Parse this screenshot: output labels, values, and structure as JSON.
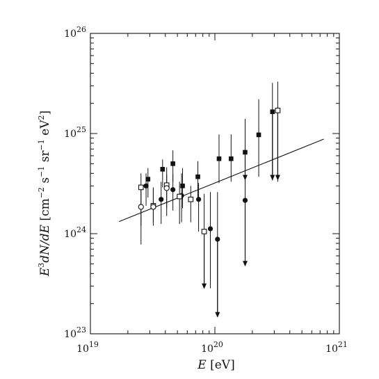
{
  "chart_data": {
    "type": "scatter",
    "title": "",
    "x_scale": "log",
    "y_scale": "log",
    "xlim": [
      1e+19,
      1e+21
    ],
    "ylim": [
      1e+23,
      1e+26
    ],
    "grid": false,
    "legend": "none",
    "x_ticks": [
      {
        "value": 1e+19,
        "base": "10",
        "exp": "19"
      },
      {
        "value": 1e+20,
        "base": "10",
        "exp": "20"
      },
      {
        "value": 1e+21,
        "base": "10",
        "exp": "21"
      }
    ],
    "y_ticks": [
      {
        "value": 1e+23,
        "base": "10",
        "exp": "23"
      },
      {
        "value": 1e+24,
        "base": "10",
        "exp": "24"
      },
      {
        "value": 1e+25,
        "base": "10",
        "exp": "25"
      },
      {
        "value": 1e+26,
        "base": "10",
        "exp": "26"
      }
    ],
    "xlabel": {
      "var": "E",
      "unit": "[eV]"
    },
    "ylabel": {
      "parts": [
        {
          "t": "E",
          "s": "italic"
        },
        {
          "t": "3",
          "s": "sup"
        },
        {
          "t": "dN/dE",
          "s": "italic"
        },
        {
          "t": " [cm",
          "s": "roman"
        },
        {
          "t": "−2",
          "s": "sup"
        },
        {
          "t": " s",
          "s": "roman"
        },
        {
          "t": "−1",
          "s": "sup"
        },
        {
          "t": " sr",
          "s": "roman"
        },
        {
          "t": "−1",
          "s": "sup"
        },
        {
          "t": " eV",
          "s": "roman"
        },
        {
          "t": "2",
          "s": "sup"
        },
        {
          "t": "]",
          "s": "roman"
        }
      ]
    },
    "fit_line": {
      "x": [
        1.7e+19,
        7.5e+20
      ],
      "y": [
        1.32e+24,
        8.8e+24
      ]
    },
    "series": [
      {
        "marker": "filled-square",
        "points": [
          {
            "x": 2.9e+19,
            "y": 3.5e+24,
            "lo": 2.3e+24,
            "hi": 4.5e+24
          },
          {
            "x": 3.8e+19,
            "y": 4.4e+24,
            "lo": 2.9e+24,
            "hi": 5.5e+24
          },
          {
            "x": 4.6e+19,
            "y": 5e+24,
            "lo": 3.3e+24,
            "hi": 6.8e+24
          },
          {
            "x": 5.5e+19,
            "y": 3e+24,
            "lo": 1.8e+24,
            "hi": 4.5e+24
          },
          {
            "x": 7.3e+19,
            "y": 3.7e+24,
            "lo": 2.3e+24,
            "hi": 5.3e+24
          },
          {
            "x": 1.08e+20,
            "y": 5.6e+24,
            "lo": 3.2e+24,
            "hi": 9.8e+24
          },
          {
            "x": 1.35e+20,
            "y": 5.6e+24,
            "lo": 3.3e+24,
            "hi": 9.8e+24
          },
          {
            "x": 1.75e+20,
            "y": 6.5e+24,
            "lo": 3.3e+24,
            "hi": 1.4e+25
          },
          {
            "x": 2.25e+20,
            "y": 9.7e+24,
            "lo": 3.7e+24,
            "hi": 2.2e+25
          },
          {
            "x": 2.9e+20,
            "y": 1.65e+25,
            "lo": 3.4e+24,
            "hi": 3.2e+25
          }
        ]
      },
      {
        "marker": "filled-circle",
        "points": [
          {
            "x": 2.8e+19,
            "y": 3e+24,
            "lo": 1.9e+24,
            "hi": 4e+24
          },
          {
            "x": 3.7e+19,
            "y": 2.2e+24,
            "lo": 1.25e+24,
            "hi": 3.3e+24
          },
          {
            "x": 4.6e+19,
            "y": 2.75e+24,
            "lo": 1.7e+24,
            "hi": 3.9e+24
          },
          {
            "x": 5.4e+19,
            "y": 2.4e+24,
            "lo": 1.3e+24,
            "hi": 4e+24
          },
          {
            "x": 7.4e+19,
            "y": 2.2e+24,
            "lo": 1.05e+24,
            "hi": 3.2e+24
          },
          {
            "x": 9.2e+19,
            "y": 1.12e+24,
            "lo": 2.85e+23,
            "hi": 2.6e+24
          },
          {
            "x": 1.05e+20,
            "y": 8.8e+23,
            "lo": 1.5e+23,
            "hi": 2.6e+24
          },
          {
            "x": 1.75e+20,
            "y": 2.15e+24,
            "lo": 5e+23,
            "hi": 4e+24
          }
        ]
      },
      {
        "marker": "open-square",
        "points": [
          {
            "x": 2.55e+19,
            "y": 2.9e+24,
            "lo": 1.2e+24,
            "hi": 4e+24
          },
          {
            "x": 3.2e+19,
            "y": 1.9e+24,
            "lo": 1.3e+24,
            "hi": 2.8e+24
          },
          {
            "x": 4.1e+19,
            "y": 3.05e+24,
            "lo": 1.8e+24,
            "hi": 4.6e+24
          },
          {
            "x": 5.2e+19,
            "y": 2.35e+24,
            "lo": 1.25e+24,
            "hi": 3.3e+24
          },
          {
            "x": 6.4e+19,
            "y": 2.2e+24,
            "lo": 1.3e+24,
            "hi": 3e+24
          },
          {
            "x": 8.2e+19,
            "y": 1.05e+24,
            "lo": 3e+23,
            "hi": 2.5e+24
          },
          {
            "x": 3.2e+20,
            "y": 1.7e+25,
            "lo": 3.3e+24,
            "hi": 3.3e+25
          }
        ]
      },
      {
        "marker": "open-circle",
        "points": [
          {
            "x": 2.55e+19,
            "y": 1.85e+24,
            "lo": 7.8e+23,
            "hi": 2.9e+24
          },
          {
            "x": 3.2e+19,
            "y": 1.85e+24,
            "lo": 1.2e+24,
            "hi": 2.9e+24
          },
          {
            "x": 4.1e+19,
            "y": 2.85e+24,
            "lo": 1.5e+24,
            "hi": 3.9e+24
          }
        ]
      },
      {
        "marker": "upper-limit-arrow",
        "points": [
          {
            "x": 8.2e+19,
            "from": 1.05e+24,
            "to": 2.8e+23
          },
          {
            "x": 1.05e+20,
            "from": 8.8e+23,
            "to": 1.45e+23
          },
          {
            "x": 1.75e+20,
            "from": 2.15e+24,
            "to": 4.7e+23
          },
          {
            "x": 1.75e+20,
            "from": 6.5e+24,
            "to": 3.4e+24
          },
          {
            "x": 2.9e+20,
            "from": 1.65e+25,
            "to": 3.4e+24
          },
          {
            "x": 3.2e+20,
            "from": 1.7e+25,
            "to": 3.4e+24
          }
        ]
      }
    ]
  }
}
